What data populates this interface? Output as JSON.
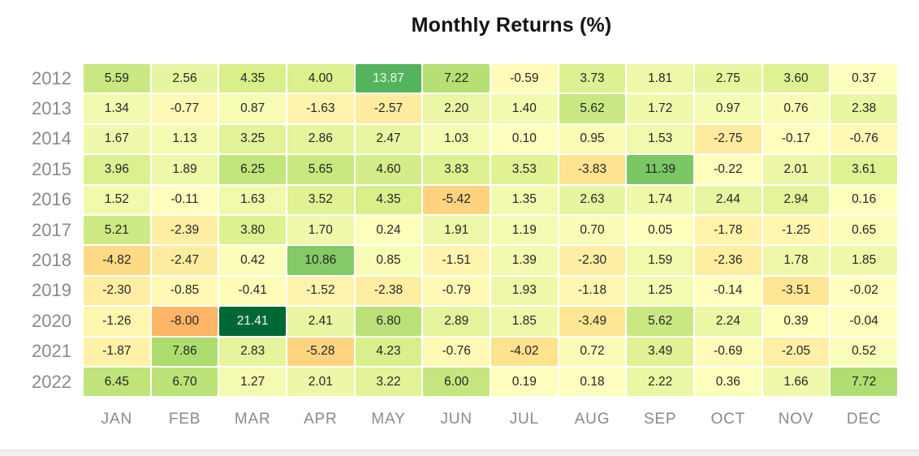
{
  "title": "Monthly Returns (%)",
  "chart_data": {
    "type": "heatmap",
    "title": "Monthly Returns (%)",
    "rows": [
      "2012",
      "2013",
      "2014",
      "2015",
      "2016",
      "2017",
      "2018",
      "2019",
      "2020",
      "2021",
      "2022"
    ],
    "columns": [
      "JAN",
      "FEB",
      "MAR",
      "APR",
      "MAY",
      "JUN",
      "JUL",
      "AUG",
      "SEP",
      "OCT",
      "NOV",
      "DEC"
    ],
    "values": [
      [
        5.59,
        2.56,
        4.35,
        4.0,
        13.87,
        7.22,
        -0.59,
        3.73,
        1.81,
        2.75,
        3.6,
        0.37
      ],
      [
        1.34,
        -0.77,
        0.87,
        -1.63,
        -2.57,
        2.2,
        1.4,
        5.62,
        1.72,
        0.97,
        0.76,
        2.38
      ],
      [
        1.67,
        1.13,
        3.25,
        2.86,
        2.47,
        1.03,
        0.1,
        0.95,
        1.53,
        -2.75,
        -0.17,
        -0.76
      ],
      [
        3.96,
        1.89,
        6.25,
        5.65,
        4.6,
        3.83,
        3.53,
        -3.83,
        11.39,
        -0.22,
        2.01,
        3.61
      ],
      [
        1.52,
        -0.11,
        1.63,
        3.52,
        4.35,
        -5.42,
        1.35,
        2.63,
        1.74,
        2.44,
        2.94,
        0.16
      ],
      [
        5.21,
        -2.39,
        3.8,
        1.7,
        0.24,
        1.91,
        1.19,
        0.7,
        0.05,
        -1.78,
        -1.25,
        0.65
      ],
      [
        -4.82,
        -2.47,
        0.42,
        10.86,
        0.85,
        -1.51,
        1.39,
        -2.3,
        1.59,
        -2.36,
        1.78,
        1.85
      ],
      [
        -2.3,
        -0.85,
        -0.41,
        -1.52,
        -2.38,
        -0.79,
        1.93,
        -1.18,
        1.25,
        -0.14,
        -3.51,
        -0.02
      ],
      [
        -1.26,
        -8.0,
        21.41,
        2.41,
        6.8,
        2.89,
        1.85,
        -3.49,
        5.62,
        2.24,
        0.39,
        -0.04
      ],
      [
        -1.87,
        7.86,
        2.83,
        -5.28,
        4.23,
        -0.76,
        -4.02,
        0.72,
        3.49,
        -0.69,
        -2.05,
        0.52
      ],
      [
        6.45,
        6.7,
        1.27,
        2.01,
        3.22,
        6.0,
        0.19,
        0.18,
        2.22,
        0.36,
        1.66,
        7.72
      ]
    ],
    "value_decimals": 2,
    "colormap": {
      "name": "RdYlGn",
      "center": 0,
      "vmin": -21.41,
      "vmax": 21.41,
      "stops": [
        "#a50026",
        "#d73027",
        "#f46d43",
        "#fdae61",
        "#fee08b",
        "#ffffbf",
        "#d9ef8b",
        "#a6d96a",
        "#66bd63",
        "#1a9850",
        "#006837"
      ]
    },
    "text_colors": {
      "dark": "#262626",
      "light": "#f2f7f1"
    },
    "label_color": "#8a8a8a",
    "legend": "none",
    "grid": "off"
  }
}
